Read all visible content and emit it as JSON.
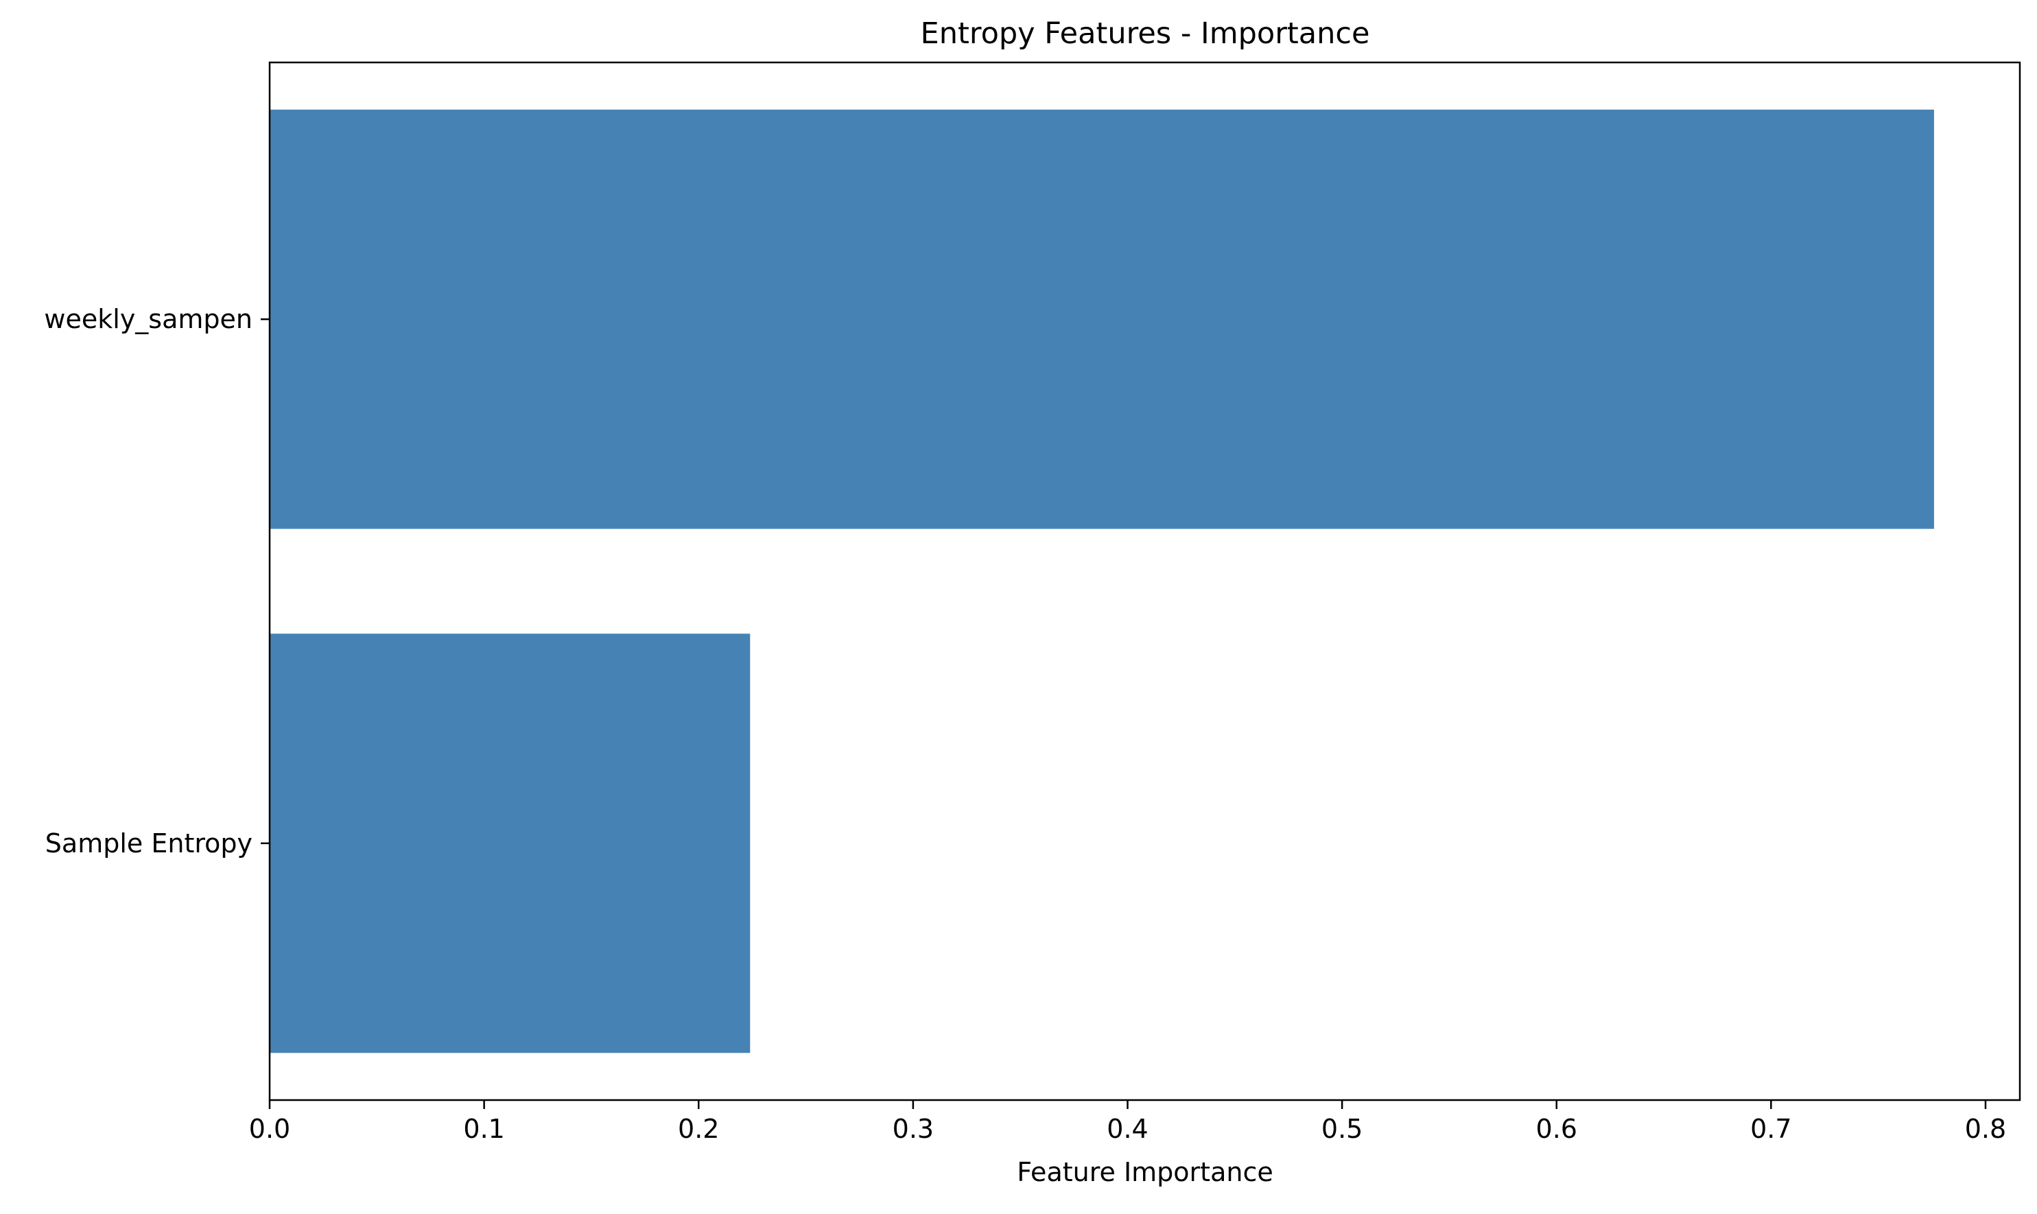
{
  "chart_data": {
    "type": "bar",
    "orientation": "horizontal",
    "title": "Entropy Features - Importance",
    "xlabel": "Feature Importance",
    "ylabel": "",
    "categories": [
      "weekly_sampen",
      "Sample Entropy"
    ],
    "values": [
      0.776,
      0.224
    ],
    "xlim": [
      0.0,
      0.816
    ],
    "xticks": [
      0.0,
      0.1,
      0.2,
      0.3,
      0.4,
      0.5,
      0.6,
      0.7,
      0.8
    ],
    "xtick_labels": [
      "0.0",
      "0.1",
      "0.2",
      "0.3",
      "0.4",
      "0.5",
      "0.6",
      "0.7",
      "0.8"
    ],
    "bar_color": "#4682b4",
    "grid": false,
    "legend": false
  }
}
